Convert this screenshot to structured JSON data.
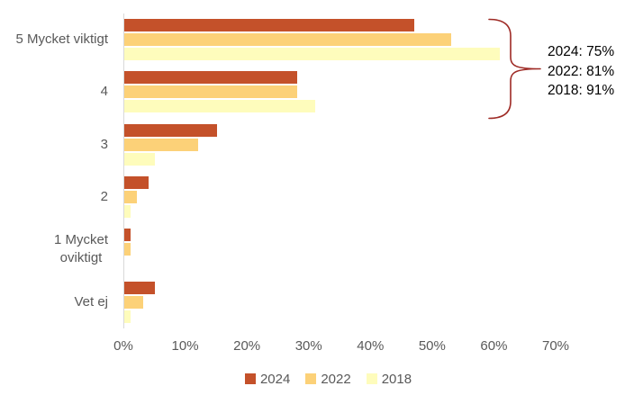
{
  "chart_data": {
    "type": "bar",
    "orientation": "horizontal",
    "title": "",
    "categories": [
      "5 Mycket viktigt",
      "4",
      "3",
      "2",
      "1 Mycket oviktigt",
      "Vet ej"
    ],
    "category_label_lines": [
      [
        "5 Mycket viktigt"
      ],
      [
        "4"
      ],
      [
        "3"
      ],
      [
        "2"
      ],
      [
        "1 Mycket",
        "oviktigt"
      ],
      [
        "Vet ej"
      ]
    ],
    "series": [
      {
        "name": "2024",
        "color": "#C4512A",
        "values": [
          47,
          28,
          15,
          4,
          1,
          5
        ]
      },
      {
        "name": "2022",
        "color": "#FCD178",
        "values": [
          53,
          28,
          12,
          2,
          1,
          3
        ]
      },
      {
        "name": "2018",
        "color": "#FEFCBC",
        "values": [
          61,
          31,
          5,
          1,
          0,
          1
        ]
      }
    ],
    "x_axis": {
      "tick_labels": [
        "0%",
        "10%",
        "20%",
        "30%",
        "40%",
        "50%",
        "60%",
        "70%"
      ],
      "min": 0,
      "max": 70,
      "unit": "%"
    },
    "legend": {
      "position": "bottom",
      "entries": [
        "2024",
        "2022",
        "2018"
      ]
    },
    "grid": false
  },
  "annotation": {
    "lines": [
      "2024: 75%",
      "2022: 81%",
      "2018: 91%"
    ],
    "brace_color": "#9E2A25",
    "text_color": "#000000"
  },
  "style_colors": {
    "axis_line": "#D9D9D9",
    "label_text": "#595959",
    "background": "#FFFFFF"
  }
}
